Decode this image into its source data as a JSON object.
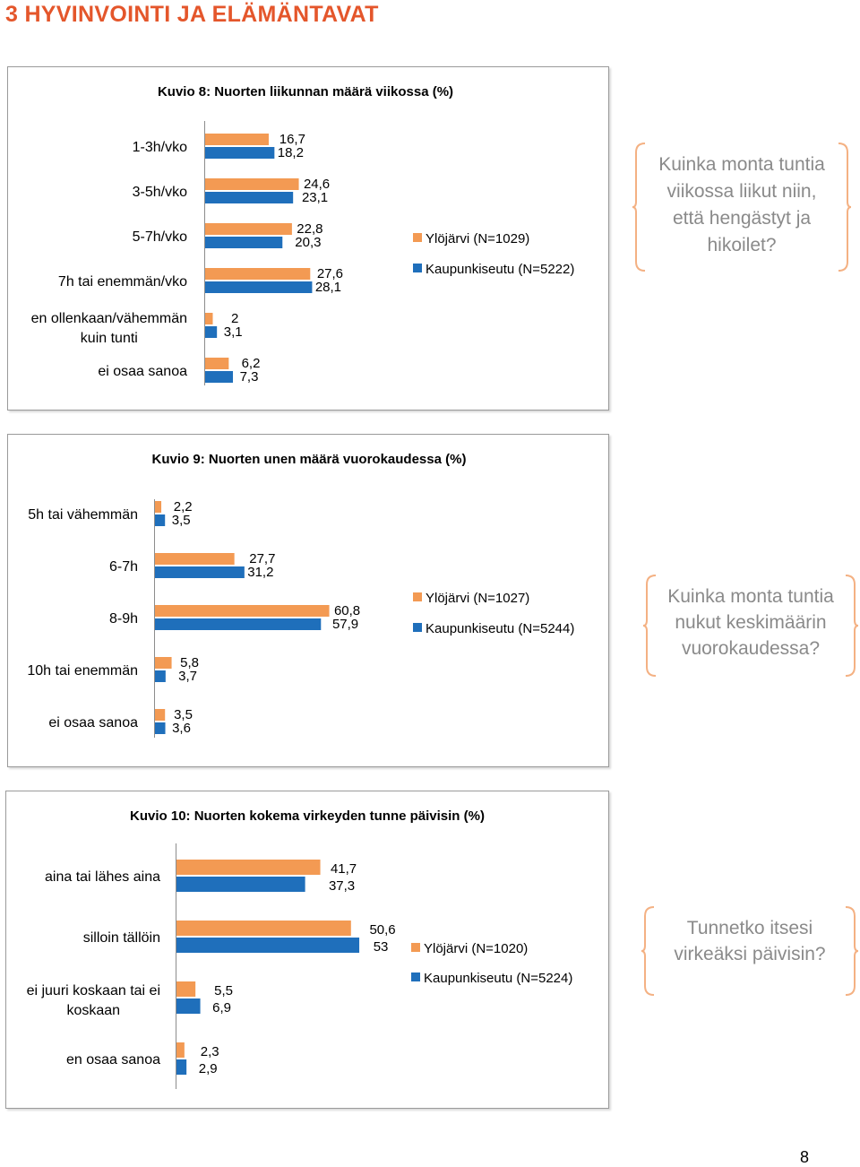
{
  "heading": "3 HYVINVOINTI JA ELÄMÄNTAVAT",
  "colors": {
    "accent": "#f39a53",
    "series_2": "#1f6fbb",
    "heading": "#e4562b",
    "callout_text": "#8a8a8a",
    "callout_bracket": "#f4b183"
  },
  "page_number": "8",
  "chart_data": [
    {
      "type": "bar",
      "orientation": "horizontal",
      "title": "Kuvio 8: Nuorten liikunnan määrä viikossa (%)",
      "categories": [
        "1-3h/vko",
        "3-5h/vko",
        "5-7h/vko",
        "7h tai enemmän/vko",
        "en ollenkaan/vähemmän kuin tunti",
        "ei osaa sanoa"
      ],
      "value_labels": [
        [
          "16,7",
          "18,2"
        ],
        [
          "24,6",
          "23,1"
        ],
        [
          "22,8",
          "20,3"
        ],
        [
          "27,6",
          "28,1"
        ],
        [
          "2",
          "3,1"
        ],
        [
          "6,2",
          "7,3"
        ]
      ],
      "series": [
        {
          "name": "Ylöjärvi (N=1029)",
          "color": "#f39a53",
          "values": [
            16.7,
            24.6,
            22.8,
            27.6,
            2,
            6.2
          ]
        },
        {
          "name": "Kaupunkiseutu (N=5222)",
          "color": "#1f6fbb",
          "values": [
            18.2,
            23.1,
            20.3,
            28.1,
            3.1,
            7.3
          ]
        }
      ],
      "legend": "right",
      "callout": "Kuinka monta tuntia viikossa liikut niin, että hengästyt ja hikoilet?"
    },
    {
      "type": "bar",
      "orientation": "horizontal",
      "title": "Kuvio 9: Nuorten unen määrä vuorokaudessa (%)",
      "categories": [
        "5h tai vähemmän",
        "6-7h",
        "8-9h",
        "10h tai enemmän",
        "ei osaa sanoa"
      ],
      "value_labels": [
        [
          "2,2",
          "3,5"
        ],
        [
          "27,7",
          "31,2"
        ],
        [
          "60,8",
          "57,9"
        ],
        [
          "5,8",
          "3,7"
        ],
        [
          "3,5",
          "3,6"
        ]
      ],
      "series": [
        {
          "name": "Ylöjärvi (N=1027)",
          "color": "#f39a53",
          "values": [
            2.2,
            27.7,
            60.8,
            5.8,
            3.5
          ]
        },
        {
          "name": "Kaupunkiseutu (N=5244)",
          "color": "#1f6fbb",
          "values": [
            3.5,
            31.2,
            57.9,
            3.7,
            3.6
          ]
        }
      ],
      "legend": "right",
      "callout": "Kuinka monta tuntia nukut keskimäärin vuorokaudessa?"
    },
    {
      "type": "bar",
      "orientation": "horizontal",
      "title": "Kuvio 10: Nuorten kokema virkeyden tunne päivisin (%)",
      "categories": [
        "aina tai lähes aina",
        "silloin tällöin",
        "ei juuri koskaan tai ei koskaan",
        "en osaa sanoa"
      ],
      "value_labels": [
        [
          "41,7",
          "37,3"
        ],
        [
          "50,6",
          "53"
        ],
        [
          "5,5",
          "6,9"
        ],
        [
          "2,3",
          "2,9"
        ]
      ],
      "series": [
        {
          "name": "Ylöjärvi (N=1020)",
          "color": "#f39a53",
          "values": [
            41.7,
            50.6,
            5.5,
            2.3
          ]
        },
        {
          "name": "Kaupunkiseutu (N=5224)",
          "color": "#1f6fbb",
          "values": [
            37.3,
            53,
            6.9,
            2.9
          ]
        }
      ],
      "legend": "right",
      "callout": "Tunnetko itsesi virkeäksi päivisin?"
    }
  ]
}
